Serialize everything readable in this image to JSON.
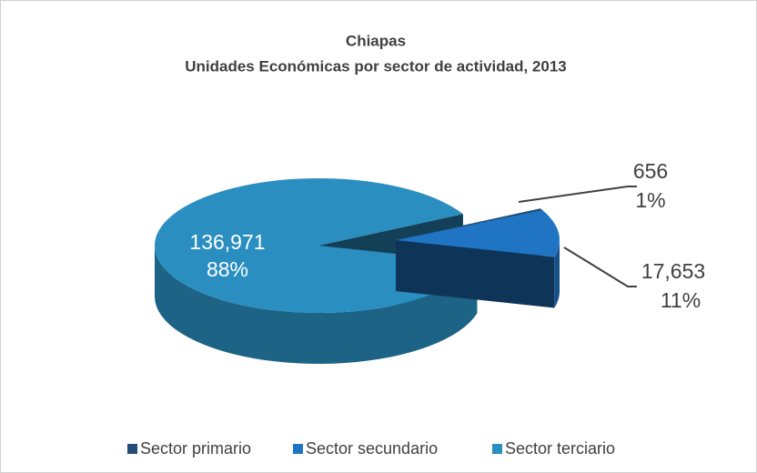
{
  "chart_data": {
    "type": "pie",
    "title": "Chiapas",
    "subtitle": "Unidades Económicas por sector de actividad, 2013",
    "categories": [
      "Sector primario",
      "Sector secundario",
      "Sector terciario"
    ],
    "values": [
      656,
      17653,
      136971
    ],
    "value_labels": [
      "656",
      "17,653",
      "136,971"
    ],
    "percent_labels": [
      "1%",
      "11%",
      "88%"
    ],
    "colors": [
      "#234d78",
      "#1f74c4",
      "#2a8ec0"
    ],
    "legend": "bottom"
  }
}
